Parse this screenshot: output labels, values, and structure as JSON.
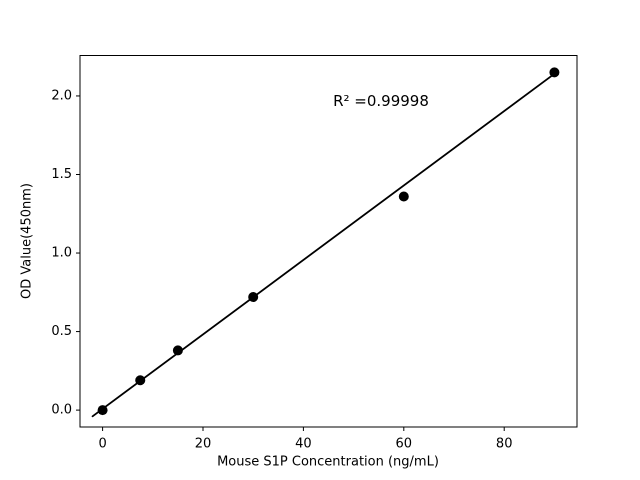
{
  "chart_data": {
    "type": "scatter",
    "title": "",
    "xlabel": "Mouse S1P Concentration (ng/mL)",
    "ylabel": "OD Value(450nm)",
    "annotation": "R² =0.99998",
    "x": [
      0,
      7.5,
      15,
      30,
      60,
      90
    ],
    "y": [
      0.0,
      0.19,
      0.38,
      0.72,
      1.36,
      2.15
    ],
    "fit_line": {
      "slope": 0.0237,
      "intercept": 0.008,
      "x_start": -2,
      "x_end": 90.3,
      "r_squared": 0.99998
    },
    "xlim": [
      -4.5,
      94.5
    ],
    "ylim": [
      -0.1075,
      2.2575
    ],
    "x_ticks": [
      0,
      20,
      40,
      60,
      80
    ],
    "y_ticks": [
      0.0,
      0.5,
      1.0,
      1.5,
      2.0
    ],
    "x_tick_labels": [
      "0",
      "20",
      "40",
      "60",
      "80"
    ],
    "y_tick_labels": [
      "0.0",
      "0.5",
      "1.0",
      "1.5",
      "2.0"
    ],
    "marker_color": "#000000",
    "line_color": "#000000",
    "frame_color": "#000000",
    "background": "#ffffff",
    "grid": false,
    "legend": "none"
  }
}
